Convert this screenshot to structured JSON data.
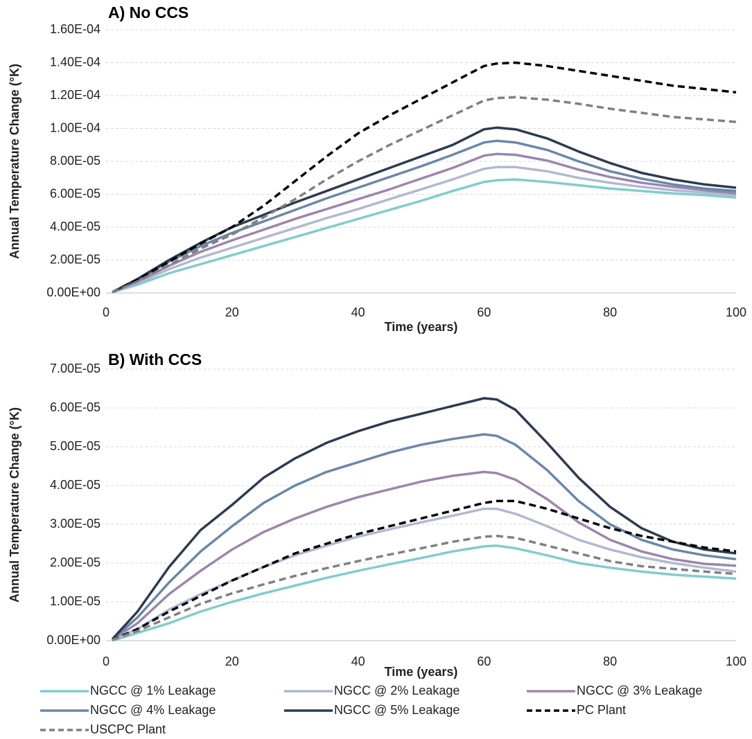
{
  "chart_data": [
    {
      "type": "line",
      "title": "A) No CCS",
      "x_label": "Time (years)",
      "y_label": "Annual Temperature Change (°K)",
      "x": [
        1,
        5,
        10,
        15,
        20,
        25,
        30,
        35,
        40,
        45,
        50,
        55,
        60,
        62,
        65,
        70,
        75,
        80,
        85,
        90,
        95,
        100
      ],
      "xlim": [
        0,
        100
      ],
      "xticks": [
        0,
        20,
        40,
        60,
        80,
        100
      ],
      "ylim": [
        0,
        0.00016
      ],
      "yticks": [
        {
          "value": 0,
          "label": "0.00E+00"
        },
        {
          "value": 2e-05,
          "label": "2.00E-05"
        },
        {
          "value": 4e-05,
          "label": "4.00E-05"
        },
        {
          "value": 6e-05,
          "label": "6.00E-05"
        },
        {
          "value": 8e-05,
          "label": "8.00E-05"
        },
        {
          "value": 0.0001,
          "label": "1.00E-04"
        },
        {
          "value": 0.00012,
          "label": "1.20E-04"
        },
        {
          "value": 0.00014,
          "label": "1.40E-04"
        },
        {
          "value": 0.00016,
          "label": "1.60E-04"
        }
      ],
      "grid": true,
      "series": [
        {
          "name": "NGCC @ 1% Leakage",
          "color": "#7fcdcd",
          "style": "solid",
          "values": [
            5e-07,
            5e-06,
            1.2e-05,
            1.75e-05,
            2.3e-05,
            2.85e-05,
            3.4e-05,
            3.95e-05,
            4.5e-05,
            5.05e-05,
            5.6e-05,
            6.2e-05,
            6.75e-05,
            6.85e-05,
            6.9e-05,
            6.75e-05,
            6.55e-05,
            6.35e-05,
            6.2e-05,
            6.05e-05,
            5.95e-05,
            5.8e-05
          ]
        },
        {
          "name": "NGCC @ 2% Leakage",
          "color": "#b0b9d0",
          "style": "solid",
          "values": [
            5e-07,
            6e-06,
            1.45e-05,
            2.15e-05,
            2.75e-05,
            3.35e-05,
            3.95e-05,
            4.55e-05,
            5.1e-05,
            5.7e-05,
            6.3e-05,
            6.9e-05,
            7.55e-05,
            7.65e-05,
            7.65e-05,
            7.4e-05,
            7e-05,
            6.7e-05,
            6.45e-05,
            6.25e-05,
            6.1e-05,
            5.95e-05
          ]
        },
        {
          "name": "NGCC @ 3% Leakage",
          "color": "#9b86ad",
          "style": "solid",
          "values": [
            5e-07,
            7e-06,
            1.65e-05,
            2.5e-05,
            3.2e-05,
            3.85e-05,
            4.5e-05,
            5.1e-05,
            5.7e-05,
            6.3e-05,
            6.95e-05,
            7.6e-05,
            8.35e-05,
            8.45e-05,
            8.4e-05,
            8.05e-05,
            7.5e-05,
            7.05e-05,
            6.7e-05,
            6.45e-05,
            6.25e-05,
            6.05e-05
          ]
        },
        {
          "name": "NGCC @ 4% Leakage",
          "color": "#6a86aa",
          "style": "solid",
          "values": [
            5e-07,
            8e-06,
            1.9e-05,
            2.85e-05,
            3.65e-05,
            4.35e-05,
            5.05e-05,
            5.75e-05,
            6.4e-05,
            7.05e-05,
            7.7e-05,
            8.4e-05,
            9.15e-05,
            9.25e-05,
            9.15e-05,
            8.7e-05,
            8e-05,
            7.4e-05,
            6.95e-05,
            6.6e-05,
            6.35e-05,
            6.2e-05
          ]
        },
        {
          "name": "NGCC @ 5% Leakage",
          "color": "#2e3a50",
          "style": "solid",
          "values": [
            5e-07,
            8.5e-06,
            2e-05,
            3.05e-05,
            4e-05,
            4.75e-05,
            5.5e-05,
            6.2e-05,
            6.9e-05,
            7.6e-05,
            8.3e-05,
            9e-05,
            9.95e-05,
            0.0001005,
            9.95e-05,
            9.4e-05,
            8.6e-05,
            7.9e-05,
            7.3e-05,
            6.9e-05,
            6.6e-05,
            6.4e-05
          ]
        },
        {
          "name": "PC Plant",
          "color": "#000000",
          "style": "dashed",
          "values": [
            5e-07,
            8e-06,
            1.9e-05,
            3e-05,
            4e-05,
            5.3e-05,
            6.8e-05,
            8.3e-05,
            9.7e-05,
            0.000108,
            0.000118,
            0.000128,
            0.000138,
            0.0001395,
            0.00014,
            0.000138,
            0.000135,
            0.000132,
            0.000129,
            0.000126,
            0.000124,
            0.000122
          ]
        },
        {
          "name": "USCPC Plant",
          "color": "#808080",
          "style": "dashed",
          "values": [
            5e-07,
            7e-06,
            1.7e-05,
            2.7e-05,
            3.55e-05,
            4.6e-05,
            5.7e-05,
            6.9e-05,
            8e-05,
            9e-05,
            9.9e-05,
            0.000108,
            0.000117,
            0.0001185,
            0.000119,
            0.0001175,
            0.000115,
            0.000112,
            0.0001095,
            0.000107,
            0.0001055,
            0.000104
          ]
        }
      ]
    },
    {
      "type": "line",
      "title": "B) With CCS",
      "x_label": "Time (years)",
      "y_label": "Annual Temperature Change (°K)",
      "x": [
        1,
        5,
        10,
        15,
        20,
        25,
        30,
        35,
        40,
        45,
        50,
        55,
        60,
        62,
        65,
        70,
        75,
        80,
        85,
        90,
        95,
        100
      ],
      "xlim": [
        0,
        100
      ],
      "xticks": [
        0,
        20,
        40,
        60,
        80,
        100
      ],
      "ylim": [
        0,
        7e-05
      ],
      "yticks": [
        {
          "value": 0,
          "label": "0.00E+00"
        },
        {
          "value": 1e-05,
          "label": "1.00E-05"
        },
        {
          "value": 2e-05,
          "label": "2.00E-05"
        },
        {
          "value": 3e-05,
          "label": "3.00E-05"
        },
        {
          "value": 4e-05,
          "label": "4.00E-05"
        },
        {
          "value": 5e-05,
          "label": "5.00E-05"
        },
        {
          "value": 6e-05,
          "label": "6.00E-05"
        },
        {
          "value": 7e-05,
          "label": "7.00E-05"
        }
      ],
      "grid": true,
      "legend": "bottom",
      "series": [
        {
          "name": "NGCC @ 1% Leakage",
          "color": "#7fcdcd",
          "style": "solid",
          "values": [
            0,
            2e-06,
            4.5e-06,
            7.5e-06,
            1e-05,
            1.22e-05,
            1.42e-05,
            1.62e-05,
            1.8e-05,
            1.97e-05,
            2.13e-05,
            2.3e-05,
            2.43e-05,
            2.45e-05,
            2.38e-05,
            2.2e-05,
            2e-05,
            1.88e-05,
            1.78e-05,
            1.7e-05,
            1.65e-05,
            1.6e-05
          ]
        },
        {
          "name": "NGCC @ 2% Leakage",
          "color": "#b0b9d0",
          "style": "solid",
          "values": [
            2e-07,
            3e-06,
            8e-06,
            1.2e-05,
            1.55e-05,
            1.9e-05,
            2.2e-05,
            2.45e-05,
            2.68e-05,
            2.87e-05,
            3.05e-05,
            3.22e-05,
            3.4e-05,
            3.4e-05,
            3.27e-05,
            2.95e-05,
            2.6e-05,
            2.35e-05,
            2.15e-05,
            2e-05,
            1.88e-05,
            1.78e-05
          ]
        },
        {
          "name": "NGCC @ 3% Leakage",
          "color": "#9b86ad",
          "style": "solid",
          "values": [
            3e-07,
            4.5e-06,
            1.2e-05,
            1.8e-05,
            2.35e-05,
            2.8e-05,
            3.15e-05,
            3.45e-05,
            3.7e-05,
            3.9e-05,
            4.1e-05,
            4.25e-05,
            4.35e-05,
            4.32e-05,
            4.15e-05,
            3.65e-05,
            3.05e-05,
            2.6e-05,
            2.3e-05,
            2.1e-05,
            1.98e-05,
            1.93e-05
          ]
        },
        {
          "name": "NGCC @ 4% Leakage",
          "color": "#6a86aa",
          "style": "solid",
          "values": [
            3e-07,
            6e-06,
            1.5e-05,
            2.3e-05,
            2.95e-05,
            3.55e-05,
            4e-05,
            4.35e-05,
            4.6e-05,
            4.85e-05,
            5.05e-05,
            5.2e-05,
            5.32e-05,
            5.28e-05,
            5.05e-05,
            4.4e-05,
            3.6e-05,
            3e-05,
            2.6e-05,
            2.35e-05,
            2.2e-05,
            2.1e-05
          ]
        },
        {
          "name": "NGCC @ 5% Leakage",
          "color": "#2e3a50",
          "style": "solid",
          "values": [
            4e-07,
            7.5e-06,
            1.9e-05,
            2.85e-05,
            3.5e-05,
            4.2e-05,
            4.7e-05,
            5.1e-05,
            5.4e-05,
            5.65e-05,
            5.85e-05,
            6.05e-05,
            6.25e-05,
            6.22e-05,
            5.95e-05,
            5.1e-05,
            4.2e-05,
            3.45e-05,
            2.9e-05,
            2.55e-05,
            2.35e-05,
            2.25e-05
          ]
        },
        {
          "name": "PC Plant",
          "color": "#000000",
          "style": "dashed",
          "values": [
            2e-07,
            3e-06,
            7.5e-06,
            1.15e-05,
            1.55e-05,
            1.9e-05,
            2.25e-05,
            2.5e-05,
            2.75e-05,
            2.95e-05,
            3.15e-05,
            3.35e-05,
            3.55e-05,
            3.6e-05,
            3.6e-05,
            3.4e-05,
            3.15e-05,
            2.9e-05,
            2.7e-05,
            2.55e-05,
            2.4e-05,
            2.3e-05
          ]
        },
        {
          "name": "USCPC Plant",
          "color": "#808080",
          "style": "dashed",
          "values": [
            2e-07,
            2.5e-06,
            6e-06,
            9.5e-06,
            1.22e-05,
            1.45e-05,
            1.67e-05,
            1.87e-05,
            2.05e-05,
            2.22e-05,
            2.38e-05,
            2.55e-05,
            2.68e-05,
            2.7e-05,
            2.65e-05,
            2.45e-05,
            2.25e-05,
            2.05e-05,
            1.92e-05,
            1.85e-05,
            1.78e-05,
            1.72e-05
          ]
        }
      ]
    }
  ]
}
